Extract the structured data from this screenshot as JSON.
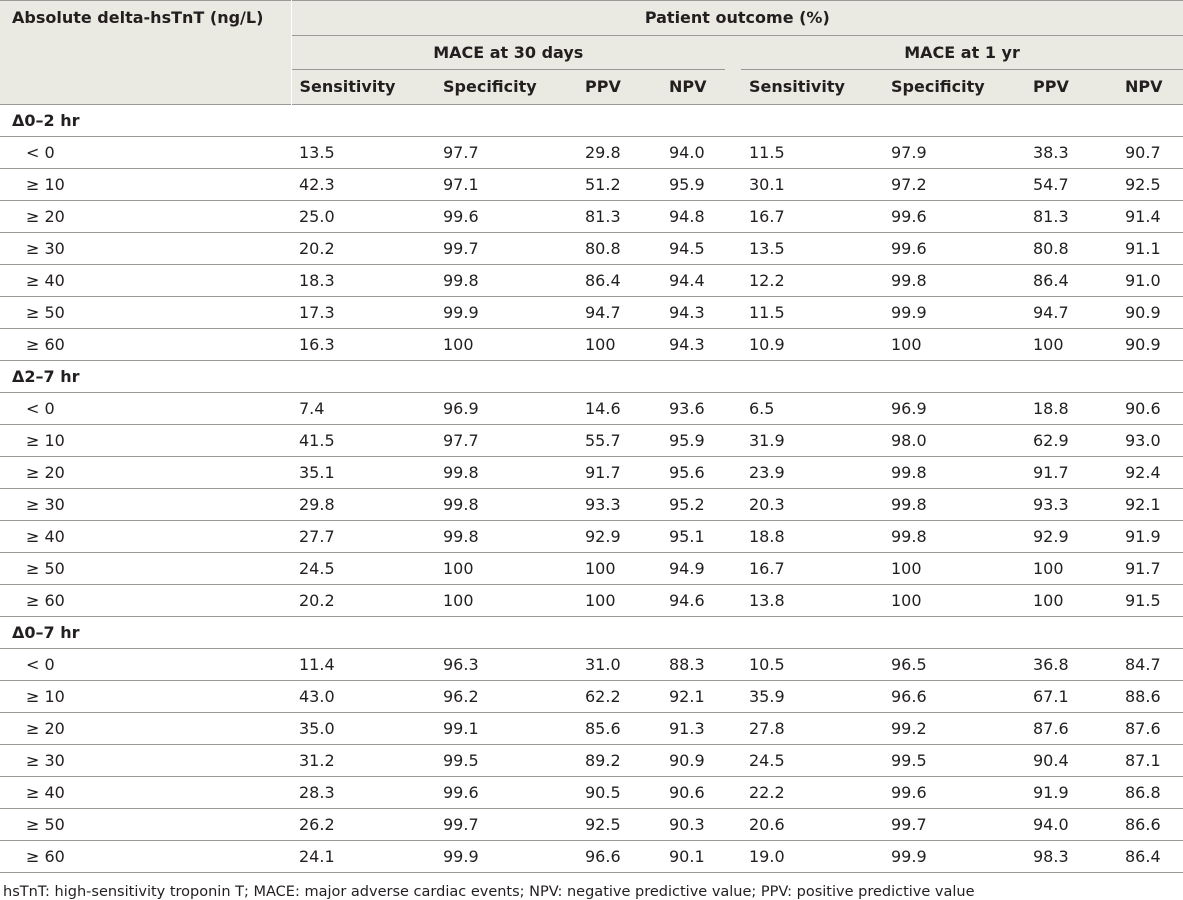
{
  "header": {
    "row_label": "Absolute delta-hsTnT (ng/L)",
    "outcome_title": "Patient outcome (%)",
    "group_30d": "MACE at 30 days",
    "group_1yr": "MACE at 1 yr",
    "cols_30d": [
      "Sensitivity",
      "Specificity",
      "PPV",
      "NPV"
    ],
    "cols_1yr": [
      "Sensitivity",
      "Specificity",
      "PPV",
      "NPV"
    ]
  },
  "sections": [
    {
      "label": "Δ0–2 hr",
      "rows": [
        {
          "label": "< 0",
          "values": [
            "13.5",
            "97.7",
            "29.8",
            "94.0",
            "11.5",
            "97.9",
            "38.3",
            "90.7"
          ]
        },
        {
          "label": "≥ 10",
          "values": [
            "42.3",
            "97.1",
            "51.2",
            "95.9",
            "30.1",
            "97.2",
            "54.7",
            "92.5"
          ]
        },
        {
          "label": "≥ 20",
          "values": [
            "25.0",
            "99.6",
            "81.3",
            "94.8",
            "16.7",
            "99.6",
            "81.3",
            "91.4"
          ]
        },
        {
          "label": "≥ 30",
          "values": [
            "20.2",
            "99.7",
            "80.8",
            "94.5",
            "13.5",
            "99.6",
            "80.8",
            "91.1"
          ]
        },
        {
          "label": "≥ 40",
          "values": [
            "18.3",
            "99.8",
            "86.4",
            "94.4",
            "12.2",
            "99.8",
            "86.4",
            "91.0"
          ]
        },
        {
          "label": "≥ 50",
          "values": [
            "17.3",
            "99.9",
            "94.7",
            "94.3",
            "11.5",
            "99.9",
            "94.7",
            "90.9"
          ]
        },
        {
          "label": "≥ 60",
          "values": [
            "16.3",
            "100",
            "100",
            "94.3",
            "10.9",
            "100",
            "100",
            "90.9"
          ]
        }
      ]
    },
    {
      "label": "Δ2–7 hr",
      "rows": [
        {
          "label": "< 0",
          "values": [
            "7.4",
            "96.9",
            "14.6",
            "93.6",
            "6.5",
            "96.9",
            "18.8",
            "90.6"
          ]
        },
        {
          "label": "≥ 10",
          "values": [
            "41.5",
            "97.7",
            "55.7",
            "95.9",
            "31.9",
            "98.0",
            "62.9",
            "93.0"
          ]
        },
        {
          "label": "≥ 20",
          "values": [
            "35.1",
            "99.8",
            "91.7",
            "95.6",
            "23.9",
            "99.8",
            "91.7",
            "92.4"
          ]
        },
        {
          "label": "≥ 30",
          "values": [
            "29.8",
            "99.8",
            "93.3",
            "95.2",
            "20.3",
            "99.8",
            "93.3",
            "92.1"
          ]
        },
        {
          "label": "≥ 40",
          "values": [
            "27.7",
            "99.8",
            "92.9",
            "95.1",
            "18.8",
            "99.8",
            "92.9",
            "91.9"
          ]
        },
        {
          "label": "≥ 50",
          "values": [
            "24.5",
            "100",
            "100",
            "94.9",
            "16.7",
            "100",
            "100",
            "91.7"
          ]
        },
        {
          "label": "≥ 60",
          "values": [
            "20.2",
            "100",
            "100",
            "94.6",
            "13.8",
            "100",
            "100",
            "91.5"
          ]
        }
      ]
    },
    {
      "label": "Δ0–7 hr",
      "rows": [
        {
          "label": "< 0",
          "values": [
            "11.4",
            "96.3",
            "31.0",
            "88.3",
            "10.5",
            "96.5",
            "36.8",
            "84.7"
          ]
        },
        {
          "label": "≥ 10",
          "values": [
            "43.0",
            "96.2",
            "62.2",
            "92.1",
            "35.9",
            "96.6",
            "67.1",
            "88.6"
          ]
        },
        {
          "label": "≥ 20",
          "values": [
            "35.0",
            "99.1",
            "85.6",
            "91.3",
            "27.8",
            "99.2",
            "87.6",
            "87.6"
          ]
        },
        {
          "label": "≥ 30",
          "values": [
            "31.2",
            "99.5",
            "89.2",
            "90.9",
            "24.5",
            "99.5",
            "90.4",
            "87.1"
          ]
        },
        {
          "label": "≥ 40",
          "values": [
            "28.3",
            "99.6",
            "90.5",
            "90.6",
            "22.2",
            "99.6",
            "91.9",
            "86.8"
          ]
        },
        {
          "label": "≥ 50",
          "values": [
            "26.2",
            "99.7",
            "92.5",
            "90.3",
            "20.6",
            "99.7",
            "94.0",
            "86.6"
          ]
        },
        {
          "label": "≥ 60",
          "values": [
            "24.1",
            "99.9",
            "96.6",
            "90.1",
            "19.0",
            "99.9",
            "98.3",
            "86.4"
          ]
        }
      ]
    }
  ],
  "footnote": "hsTnT: high-sensitivity troponin T; MACE: major adverse cardiac events; NPV: negative predictive value; PPV: positive predictive value"
}
